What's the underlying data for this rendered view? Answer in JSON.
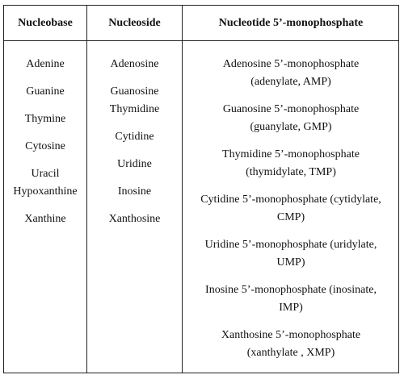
{
  "table": {
    "headers": [
      "Nucleobase",
      "Nucleoside",
      "Nucleotide 5’-monophosphate"
    ],
    "nucleobases": [
      "Adenine",
      "Guanine",
      "Thymine",
      "Cytosine",
      "Uracil",
      "Hypoxanthine",
      "Xanthine"
    ],
    "nucleosides": [
      "Adenosine",
      "Guanosine",
      "Thymidine",
      "Cytidine",
      "Uridine",
      "Inosine",
      "Xanthosine"
    ],
    "nucleotides": [
      {
        "line1": "Adenosine 5’-monophosphate",
        "line2": "(adenylate, AMP)"
      },
      {
        "line1": "Guanosine 5’-monophosphate",
        "line2": "(guanylate, GMP)"
      },
      {
        "line1": "Thymidine 5’-monophosphate",
        "line2": "(thymidylate, TMP)"
      },
      {
        "line1": "Cytidine 5’-monophosphate (cytidylate,",
        "line2": "CMP)"
      },
      {
        "line1": "Uridine 5’-monophosphate (uridylate,",
        "line2": "UMP)"
      },
      {
        "line1": "Inosine 5’-monophosphate (inosinate,",
        "line2": "IMP)"
      },
      {
        "line1": "Xanthosine 5’-monophosphate",
        "line2": "(xanthylate , XMP)"
      }
    ]
  }
}
